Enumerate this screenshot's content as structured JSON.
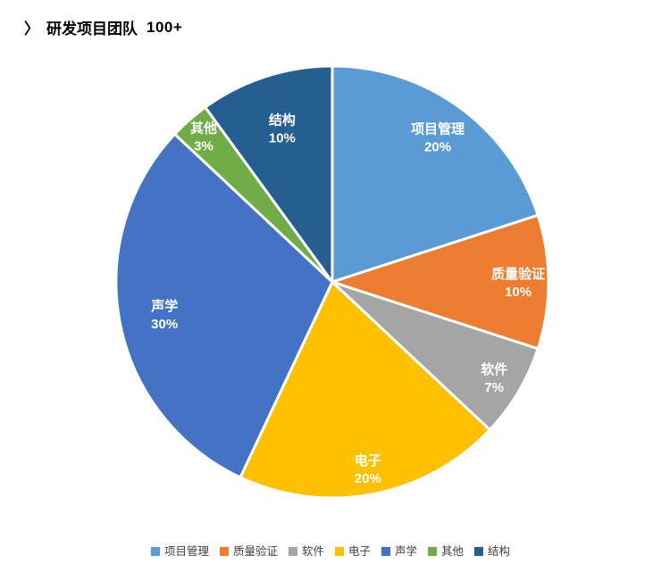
{
  "header": {
    "chevron": "〉",
    "title": "研发项目团队",
    "count": "100+"
  },
  "chart_data": {
    "type": "pie",
    "title": "研发项目团队 100+",
    "categories": [
      "项目管理",
      "质量验证",
      "软件",
      "电子",
      "声学",
      "其他",
      "结构"
    ],
    "values": [
      20,
      10,
      7,
      20,
      30,
      3,
      10
    ],
    "value_labels": [
      "20%",
      "10%",
      "7%",
      "20%",
      "30%",
      "3%",
      "10%"
    ],
    "colors": [
      "#5B9BD5",
      "#ED7D31",
      "#A5A5A5",
      "#FFC000",
      "#4472C4",
      "#70AD47",
      "#255E91"
    ],
    "unit": "%",
    "start_angle_deg": 0,
    "direction": "clockwise",
    "slice_label_style": "category name and percent inside slice, white bold",
    "slice_border_color": "#FFFFFF",
    "legend_position": "bottom",
    "legend_text_color": "#404040"
  }
}
